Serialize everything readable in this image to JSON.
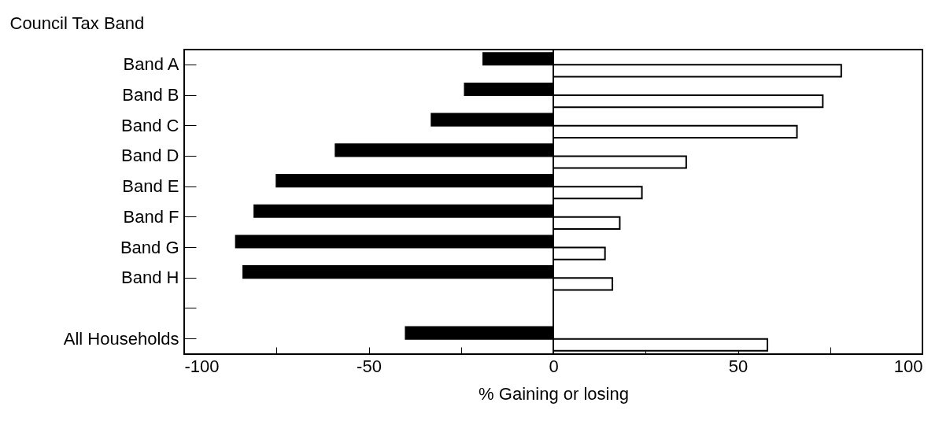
{
  "chart_data": {
    "type": "bar",
    "orientation": "horizontal",
    "ylabel": "Council Tax Band",
    "xlabel": "% Gaining or losing",
    "categories": [
      "Band A",
      "Band B",
      "Band C",
      "Band D",
      "Band E",
      "Band F",
      "Band G",
      "Band H",
      null,
      "All Households"
    ],
    "series": [
      {
        "color": "#000000",
        "values": [
          -19,
          -24,
          -33,
          -59,
          -75,
          -81,
          -86,
          -84,
          null,
          -40
        ]
      },
      {
        "color": "#ffffff",
        "values": [
          78,
          73,
          66,
          36,
          24,
          18,
          14,
          16,
          null,
          58
        ]
      }
    ],
    "xlim": [
      -100,
      100
    ],
    "xticks": [
      -100,
      {
        "value": -75,
        "label": null
      },
      -50,
      {
        "value": -25,
        "label": null
      },
      0,
      {
        "value": 25,
        "label": null
      },
      50,
      {
        "value": 75,
        "label": null
      },
      100
    ],
    "ref_lines": [
      {
        "axis": "x",
        "value": 0
      }
    ],
    "grid": false,
    "legend": false
  }
}
